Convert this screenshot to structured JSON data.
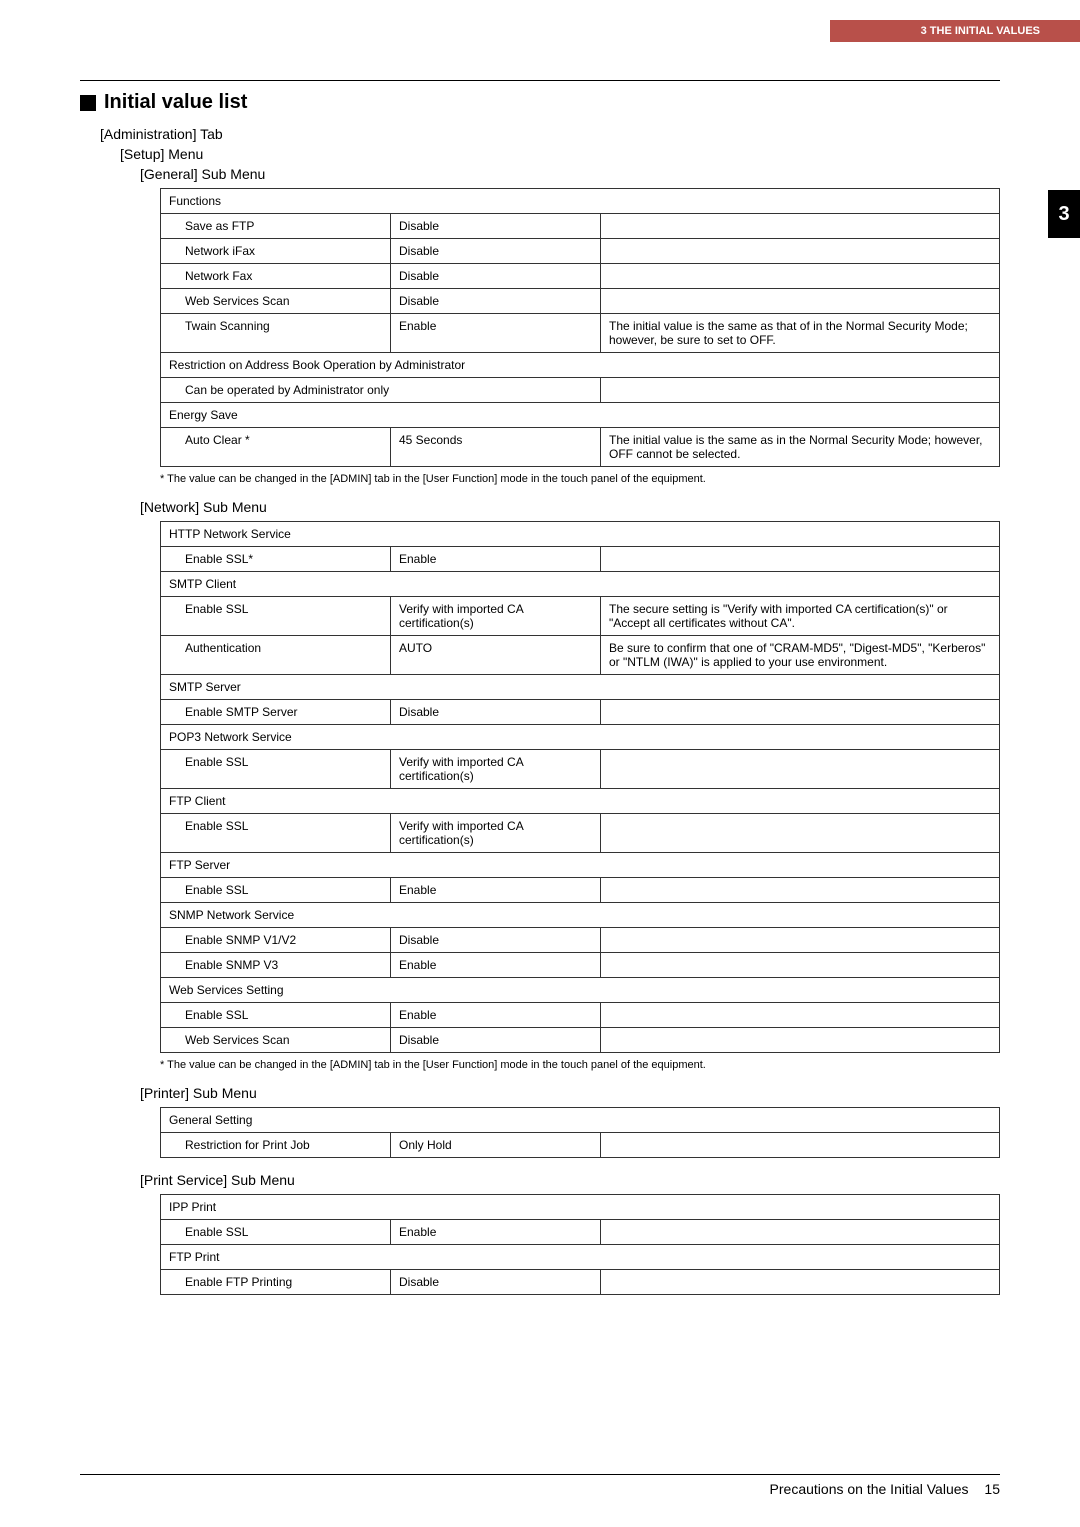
{
  "header": {
    "chapter": "3 THE INITIAL VALUES",
    "tabNumber": "3"
  },
  "title": "Initial value list",
  "admin_tab": "[Administration] Tab",
  "setup_menu": "[Setup] Menu",
  "general_submenu": "[General] Sub Menu",
  "general": {
    "functions": "Functions",
    "rows": [
      {
        "name": "Save as FTP",
        "val": "Disable",
        "note": ""
      },
      {
        "name": "Network iFax",
        "val": "Disable",
        "note": ""
      },
      {
        "name": "Network Fax",
        "val": "Disable",
        "note": ""
      },
      {
        "name": "Web Services Scan",
        "val": "Disable",
        "note": ""
      },
      {
        "name": "Twain Scanning",
        "val": "Enable",
        "note": "The initial value is the same as that of in the Normal Security Mode; however, be sure to set to OFF."
      }
    ],
    "restriction_header": "Restriction on Address Book Operation by Administrator",
    "restriction_row": "Can be operated by Administrator only",
    "energy_save": "Energy Save",
    "auto_clear": {
      "name": "Auto Clear *",
      "val": "45 Seconds",
      "note": "The initial value is the same as in the Normal Security Mode; however, OFF cannot be selected."
    }
  },
  "footnote_text": "*    The value can be changed in the [ADMIN] tab in the [User Function] mode in the touch panel of the equipment.",
  "network_submenu": "[Network] Sub Menu",
  "network": {
    "http": "HTTP Network Service",
    "http_row": {
      "name": "Enable SSL*",
      "val": "Enable",
      "note": ""
    },
    "smtp_client": "SMTP Client",
    "smtp_rows": [
      {
        "name": "Enable SSL",
        "val": "Verify with imported CA certification(s)",
        "note": "The secure setting is \"Verify with imported CA certification(s)\" or \"Accept all certificates without CA\"."
      },
      {
        "name": "Authentication",
        "val": "AUTO",
        "note": "Be sure to confirm that one of \"CRAM-MD5\", \"Digest-MD5\", \"Kerberos\" or \"NTLM (IWA)\" is applied to your use environment."
      }
    ],
    "smtp_server": "SMTP Server",
    "smtp_server_row": {
      "name": "Enable SMTP Server",
      "val": "Disable",
      "note": ""
    },
    "pop3": "POP3 Network Service",
    "pop3_row": {
      "name": "Enable SSL",
      "val": "Verify with imported CA certification(s)",
      "note": ""
    },
    "ftp_client": "FTP Client",
    "ftp_client_row": {
      "name": "Enable SSL",
      "val": "Verify with imported CA certification(s)",
      "note": ""
    },
    "ftp_server": "FTP Server",
    "ftp_server_row": {
      "name": "Enable SSL",
      "val": "Enable",
      "note": ""
    },
    "snmp": "SNMP Network Service",
    "snmp_rows": [
      {
        "name": "Enable SNMP V1/V2",
        "val": "Disable",
        "note": ""
      },
      {
        "name": "Enable SNMP V3",
        "val": "Enable",
        "note": ""
      }
    ],
    "ws": "Web Services Setting",
    "ws_rows": [
      {
        "name": "Enable SSL",
        "val": "Enable",
        "note": ""
      },
      {
        "name": "Web Services Scan",
        "val": "Disable",
        "note": ""
      }
    ]
  },
  "printer_submenu": "[Printer] Sub Menu",
  "printer": {
    "general_setting": "General Setting",
    "row": {
      "name": "Restriction for Print Job",
      "val": "Only Hold",
      "note": ""
    }
  },
  "printservice_submenu": "[Print Service] Sub Menu",
  "printservice": {
    "ipp": "IPP Print",
    "ipp_row": {
      "name": "Enable SSL",
      "val": "Enable",
      "note": ""
    },
    "ftp": "FTP Print",
    "ftp_row": {
      "name": "Enable FTP Printing",
      "val": "Disable",
      "note": ""
    }
  },
  "footer": {
    "title": "Precautions on the Initial Values",
    "page": "15"
  }
}
